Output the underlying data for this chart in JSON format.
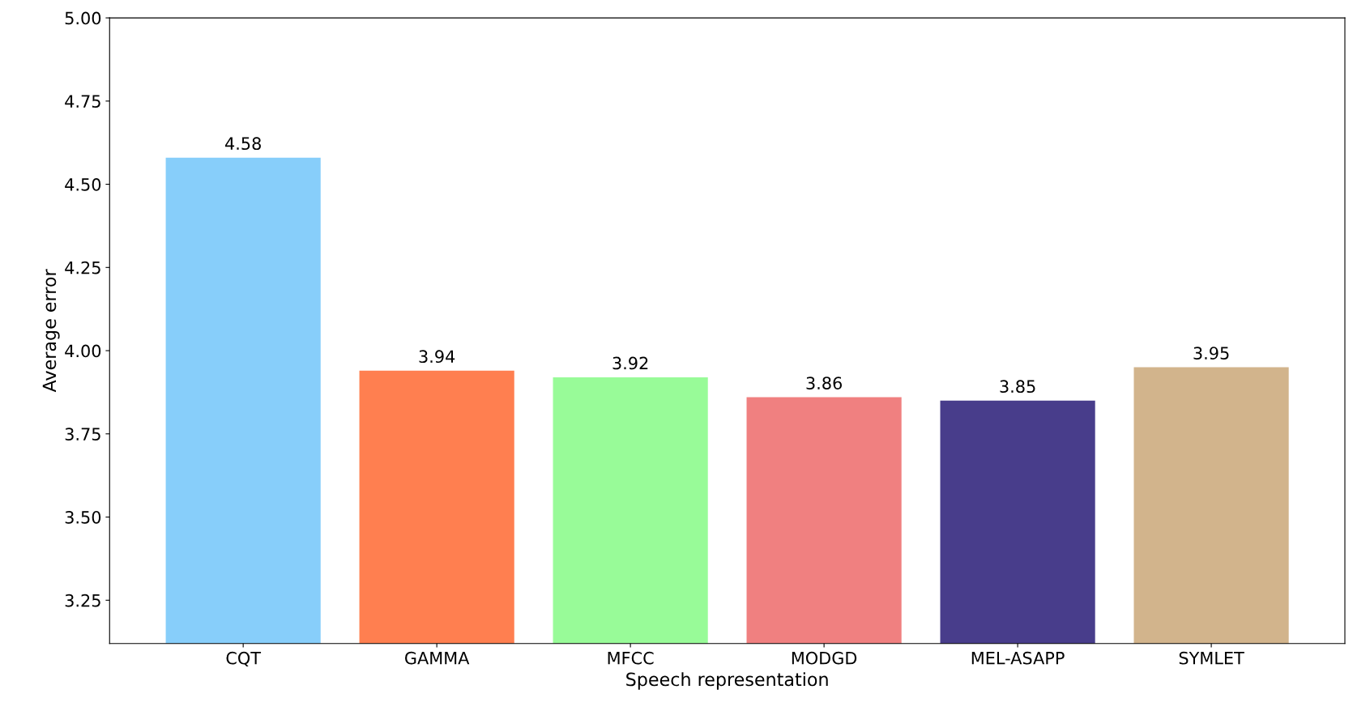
{
  "chart_data": {
    "type": "bar",
    "xlabel": "Speech representation",
    "ylabel": "Average error",
    "categories": [
      "CQT",
      "GAMMA",
      "MFCC",
      "MODGD",
      "MEL-ASAPP",
      "SYMLET"
    ],
    "values": [
      4.58,
      3.94,
      3.92,
      3.86,
      3.85,
      3.95
    ],
    "colors": [
      "#87cefa",
      "#ff7f50",
      "#98fb98",
      "#f08080",
      "#483d8b",
      "#d2b48c"
    ],
    "ylim": [
      3.12,
      5.0
    ],
    "yticks": [
      {
        "value": 3.25,
        "label": "3.25"
      },
      {
        "value": 3.5,
        "label": "3.50"
      },
      {
        "value": 3.75,
        "label": "3.75"
      },
      {
        "value": 4.0,
        "label": "4.00"
      },
      {
        "value": 4.25,
        "label": "4.25"
      },
      {
        "value": 4.5,
        "label": "4.50"
      },
      {
        "value": 4.75,
        "label": "4.75"
      },
      {
        "value": 5.0,
        "label": "5.00"
      }
    ],
    "data_labels": true,
    "grid": false
  }
}
